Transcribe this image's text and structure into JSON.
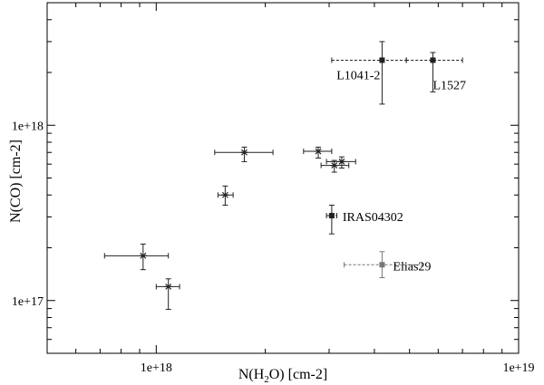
{
  "chart_data": {
    "type": "scatter",
    "xscale": "log",
    "yscale": "log",
    "xlim": [
      5e+17,
      1e+19
    ],
    "ylim": [
      5e+16,
      5e+18
    ],
    "xlabel": {
      "pre": "N(H",
      "sub": "2",
      "post": "O) [cm-2]"
    },
    "ylabel": "N(CO) [cm-2]",
    "x_ticks": [
      {
        "value": 1e+18,
        "label": "1e+18"
      },
      {
        "value": 1e+19,
        "label": "1e+19"
      }
    ],
    "y_ticks": [
      {
        "value": 1e+17,
        "label": "1e+17"
      },
      {
        "value": 1e+18,
        "label": "1e+18"
      }
    ],
    "grid": false,
    "points": [
      {
        "x": 4.2e+18,
        "y": 2.35e+18,
        "x_lo": 3.05e+18,
        "x_hi": 4.9e+18,
        "y_lo": 1.32e+18,
        "y_hi": 3e+18,
        "marker": "square",
        "color": "#222222",
        "label": "L1041-2"
      },
      {
        "x": 5.8e+18,
        "y": 2.35e+18,
        "x_lo": 4.9e+18,
        "x_hi": 7e+18,
        "y_lo": 1.55e+18,
        "y_hi": 2.6e+18,
        "marker": "square",
        "color": "#222222",
        "label": "L1527"
      },
      {
        "x": 3.05e+18,
        "y": 3.05e+17,
        "x_lo": 2.95e+18,
        "x_hi": 3.15e+18,
        "y_lo": 2.4e+17,
        "y_hi": 3.5e+17,
        "marker": "square",
        "color": "#222222",
        "label": "IRAS04302"
      },
      {
        "x": 4.2e+18,
        "y": 1.6e+17,
        "x_lo": 3.3e+18,
        "x_hi": 5.4e+18,
        "y_lo": 1.35e+17,
        "y_hi": 1.9e+17,
        "marker": "square",
        "color": "#777777",
        "label": "Elias29"
      },
      {
        "x": 1.75e+18,
        "y": 7e+17,
        "x_lo": 1.45e+18,
        "x_hi": 2.1e+18,
        "y_lo": 6.2e+17,
        "y_hi": 7.5e+17,
        "marker": "star",
        "color": "#222222",
        "label": ""
      },
      {
        "x": 2.8e+18,
        "y": 7.1e+17,
        "x_lo": 2.55e+18,
        "x_hi": 3.05e+18,
        "y_lo": 6.5e+17,
        "y_hi": 7.5e+17,
        "marker": "star",
        "color": "#222222",
        "label": ""
      },
      {
        "x": 3.25e+18,
        "y": 6.2e+17,
        "x_lo": 2.95e+18,
        "x_hi": 3.55e+18,
        "y_lo": 5.7e+17,
        "y_hi": 6.6e+17,
        "marker": "star",
        "color": "#222222",
        "label": ""
      },
      {
        "x": 3.1e+18,
        "y": 5.9e+17,
        "x_lo": 2.85e+18,
        "x_hi": 3.4e+18,
        "y_lo": 5.4e+17,
        "y_hi": 6.3e+17,
        "marker": "star",
        "color": "#222222",
        "label": ""
      },
      {
        "x": 1.55e+18,
        "y": 4e+17,
        "x_lo": 1.48e+18,
        "x_hi": 1.63e+18,
        "y_lo": 3.5e+17,
        "y_hi": 4.5e+17,
        "marker": "star",
        "color": "#222222",
        "label": ""
      },
      {
        "x": 9.2e+17,
        "y": 1.8e+17,
        "x_lo": 7.2e+17,
        "x_hi": 1.08e+18,
        "y_lo": 1.5e+17,
        "y_hi": 2.1e+17,
        "marker": "star",
        "color": "#222222",
        "label": ""
      },
      {
        "x": 1.08e+18,
        "y": 1.2e+17,
        "x_lo": 1e+18,
        "x_hi": 1.16e+18,
        "y_lo": 8.9e+16,
        "y_hi": 1.33e+17,
        "marker": "star",
        "color": "#222222",
        "label": ""
      }
    ]
  }
}
